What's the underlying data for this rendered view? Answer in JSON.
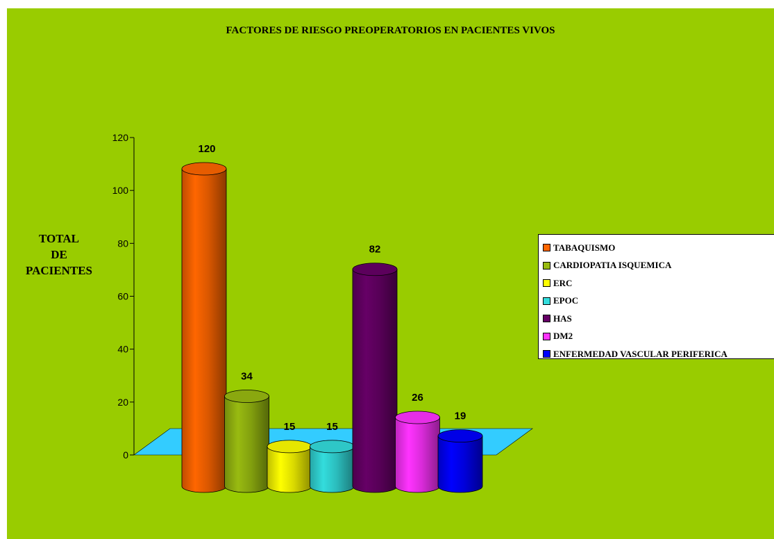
{
  "chart_data": {
    "type": "bar",
    "title": "FACTORES DE RIESGO PREOPERATORIOS EN PACIENTES VIVOS",
    "ylabel_lines": [
      "TOTAL",
      "DE",
      "PACIENTES"
    ],
    "xlabel": "",
    "ylim": [
      0,
      120
    ],
    "yticks": [
      "0",
      "20",
      "40",
      "60",
      "80",
      "100",
      "120"
    ],
    "categories": [
      "TABAQUISMO",
      "CARDIOPATIA ISQUEMICA",
      "ERC",
      "EPOC",
      "HAS",
      "DM2",
      "ENFERMEDAD VASCULAR PERIFERICA"
    ],
    "values": [
      120,
      34,
      15,
      15,
      82,
      26,
      19
    ],
    "value_labels": [
      "120",
      "34",
      "15",
      "15",
      "82",
      "26",
      "19"
    ],
    "colors": [
      "#ff6600",
      "#99bb11",
      "#ffff00",
      "#33dddd",
      "#660066",
      "#ff33ff",
      "#0000ff"
    ],
    "floor_color": "#33ccff",
    "background": "#99cc00",
    "legend_position": "right",
    "grid": false
  }
}
